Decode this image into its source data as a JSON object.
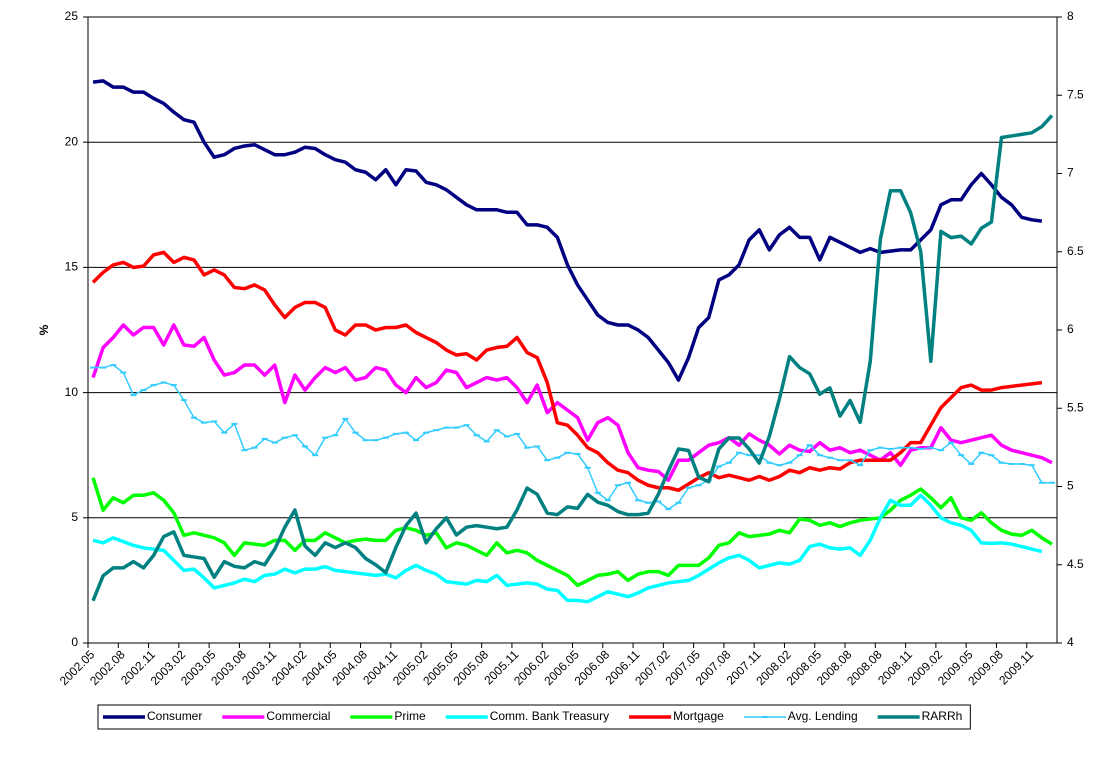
{
  "chart_data": {
    "type": "line",
    "y_label": "%",
    "categories": [
      "2002.05",
      null,
      null,
      "2002.08",
      null,
      null,
      "2002.11",
      null,
      null,
      "2003.02",
      null,
      null,
      "2003.05",
      null,
      null,
      "2003.08",
      null,
      null,
      "2003.11",
      null,
      null,
      "2004.02",
      null,
      null,
      "2004.05",
      null,
      null,
      "2004.08",
      null,
      null,
      "2004.11",
      null,
      null,
      "2005.02",
      null,
      null,
      "2005.05",
      null,
      null,
      "2005.08",
      null,
      null,
      "2005.11",
      null,
      null,
      "2006.02",
      null,
      null,
      "2006.05",
      null,
      null,
      "2006.08",
      null,
      null,
      "2006.11",
      null,
      null,
      "2007.02",
      null,
      null,
      "2007.05",
      null,
      null,
      "2007.08",
      null,
      null,
      "2007.11",
      null,
      null,
      "2008.02",
      null,
      null,
      "2008.05",
      null,
      null,
      "2008.08",
      null,
      null,
      "2008.08",
      null,
      null,
      "2008.11",
      null,
      null,
      "2009.02",
      null,
      null,
      "2009.05",
      null,
      null,
      "2009.08",
      null,
      null,
      "2009.11",
      null,
      null
    ],
    "ylim": [
      0,
      25
    ],
    "yticks": [
      0,
      5,
      10,
      15,
      20,
      25
    ],
    "y2lim": [
      4,
      8
    ],
    "y2ticks": [
      4,
      4.5,
      5,
      5.5,
      6,
      6.5,
      7,
      7.5,
      8
    ],
    "grid": true,
    "legend": "bottom",
    "series": [
      {
        "name": "Consumer",
        "color": "#000080",
        "values": [
          22.4,
          22.45,
          22.2,
          22.2,
          22.0,
          22.0,
          21.75,
          21.55,
          21.2,
          20.9,
          20.8,
          20.0,
          19.4,
          19.5,
          19.75,
          19.85,
          19.9,
          19.7,
          19.5,
          19.5,
          19.6,
          19.8,
          19.75,
          19.5,
          19.3,
          19.2,
          18.9,
          18.8,
          18.5,
          18.9,
          18.3,
          18.9,
          18.85,
          18.4,
          18.3,
          18.1,
          17.8,
          17.5,
          17.3,
          17.3,
          17.3,
          17.2,
          17.2,
          16.7,
          16.7,
          16.6,
          16.2,
          15.1,
          14.3,
          13.7,
          13.1,
          12.8,
          12.7,
          12.7,
          12.5,
          12.2,
          11.7,
          11.2,
          10.5,
          11.4,
          12.6,
          13.0,
          14.5,
          14.7,
          15.1,
          16.1,
          16.5,
          15.7,
          16.3,
          16.6,
          16.2,
          16.2,
          15.3,
          16.2,
          16.0,
          15.8,
          15.6,
          15.75,
          15.6,
          15.65,
          15.7,
          15.7,
          16.1,
          16.5,
          17.5,
          17.7,
          17.7,
          18.3,
          18.75,
          18.3,
          17.8,
          17.5,
          17.0,
          16.9,
          16.85,
          null
        ]
      },
      {
        "name": "Commercial",
        "color": "#ff00ff",
        "values": [
          10.6,
          11.8,
          12.2,
          12.7,
          12.3,
          12.6,
          12.6,
          11.9,
          12.7,
          11.9,
          11.85,
          12.2,
          11.3,
          10.7,
          10.8,
          11.1,
          11.1,
          10.7,
          11.1,
          9.6,
          10.7,
          10.1,
          10.6,
          11.0,
          10.8,
          11.0,
          10.5,
          10.6,
          11.0,
          10.9,
          10.3,
          10.0,
          10.6,
          10.2,
          10.4,
          10.9,
          10.8,
          10.2,
          10.4,
          10.6,
          10.5,
          10.6,
          10.2,
          9.6,
          10.3,
          9.2,
          9.6,
          9.3,
          9.0,
          8.1,
          8.8,
          9.0,
          8.7,
          7.6,
          7.0,
          6.9,
          6.85,
          6.5,
          7.3,
          7.3,
          7.6,
          7.9,
          8.0,
          8.2,
          7.9,
          8.35,
          8.1,
          7.9,
          7.55,
          7.9,
          7.7,
          7.65,
          8.0,
          7.7,
          7.8,
          7.6,
          7.7,
          7.5,
          7.3,
          7.6,
          7.1,
          7.7,
          7.8,
          7.8,
          8.6,
          8.1,
          8.0,
          8.1,
          8.2,
          8.3,
          7.9,
          7.7,
          7.6,
          7.5,
          7.4,
          7.2
        ]
      },
      {
        "name": "Prime",
        "color": "#00ff00",
        "values": [
          6.6,
          5.3,
          5.8,
          5.6,
          5.9,
          5.9,
          6.0,
          5.7,
          5.2,
          4.3,
          4.4,
          4.3,
          4.2,
          4.0,
          3.5,
          4.0,
          3.95,
          3.9,
          4.1,
          4.1,
          3.7,
          4.1,
          4.1,
          4.4,
          4.2,
          4.0,
          4.1,
          4.15,
          4.1,
          4.1,
          4.5,
          4.6,
          4.5,
          4.3,
          4.4,
          3.8,
          4.0,
          3.9,
          3.7,
          3.5,
          4.0,
          3.6,
          3.7,
          3.6,
          3.3,
          3.1,
          2.9,
          2.7,
          2.3,
          2.5,
          2.7,
          2.75,
          2.85,
          2.5,
          2.75,
          2.85,
          2.85,
          2.7,
          3.1,
          3.1,
          3.1,
          3.4,
          3.9,
          4.0,
          4.4,
          4.25,
          4.3,
          4.35,
          4.5,
          4.4,
          4.95,
          4.9,
          4.7,
          4.8,
          4.65,
          4.8,
          4.9,
          4.95,
          5.0,
          5.3,
          5.7,
          5.9,
          6.15,
          5.8,
          5.4,
          5.8,
          5.0,
          4.9,
          5.2,
          4.8,
          4.5,
          4.35,
          4.3,
          4.5,
          4.2,
          3.95
        ]
      },
      {
        "name": "Comm. Bank Treasury",
        "color": "#00ffff",
        "values": [
          4.1,
          4.0,
          4.2,
          4.05,
          3.9,
          3.8,
          3.75,
          3.7,
          3.3,
          2.9,
          2.95,
          2.6,
          2.2,
          2.3,
          2.4,
          2.55,
          2.45,
          2.7,
          2.75,
          2.95,
          2.8,
          2.95,
          2.95,
          3.05,
          2.9,
          2.85,
          2.8,
          2.75,
          2.7,
          2.75,
          2.6,
          2.9,
          3.1,
          2.9,
          2.75,
          2.45,
          2.4,
          2.35,
          2.5,
          2.45,
          2.7,
          2.3,
          2.35,
          2.4,
          2.35,
          2.15,
          2.1,
          1.7,
          1.7,
          1.65,
          1.85,
          2.05,
          1.95,
          1.85,
          2.0,
          2.2,
          2.3,
          2.4,
          2.45,
          2.5,
          2.7,
          2.95,
          3.2,
          3.4,
          3.5,
          3.3,
          3.0,
          3.1,
          3.2,
          3.15,
          3.3,
          3.85,
          3.95,
          3.8,
          3.75,
          3.8,
          3.5,
          4.1,
          5.0,
          5.7,
          5.5,
          5.5,
          5.9,
          5.5,
          5.0,
          4.8,
          4.7,
          4.5,
          4.0,
          3.98,
          4.0,
          3.95,
          3.85,
          3.75,
          3.65,
          null
        ]
      },
      {
        "name": "Mortgage",
        "color": "#ff0000",
        "values": [
          14.4,
          14.8,
          15.1,
          15.2,
          15.0,
          15.05,
          15.5,
          15.6,
          15.2,
          15.4,
          15.3,
          14.7,
          14.9,
          14.7,
          14.2,
          14.15,
          14.3,
          14.1,
          13.5,
          13.0,
          13.4,
          13.6,
          13.6,
          13.4,
          12.5,
          12.3,
          12.7,
          12.7,
          12.5,
          12.6,
          12.6,
          12.7,
          12.4,
          12.2,
          12.0,
          11.7,
          11.5,
          11.55,
          11.3,
          11.7,
          11.8,
          11.85,
          12.2,
          11.6,
          11.4,
          10.4,
          8.8,
          8.7,
          8.3,
          7.8,
          7.6,
          7.2,
          6.9,
          6.8,
          6.5,
          6.3,
          6.2,
          6.2,
          6.1,
          6.35,
          6.6,
          6.8,
          6.6,
          6.7,
          6.6,
          6.5,
          6.65,
          6.5,
          6.65,
          6.9,
          6.8,
          7.0,
          6.9,
          7.0,
          6.95,
          7.2,
          7.3,
          7.3,
          7.3,
          7.3,
          7.6,
          8.0,
          8.0,
          8.7,
          9.4,
          9.8,
          10.2,
          10.3,
          10.1,
          10.1,
          10.2,
          10.25,
          10.3,
          10.35,
          10.4,
          null
        ]
      },
      {
        "name": "Avg. Lending",
        "color": "#33ccff",
        "markers": true,
        "values": [
          11.0,
          11.0,
          11.1,
          10.8,
          9.9,
          10.1,
          10.3,
          10.4,
          10.3,
          9.7,
          9.0,
          8.8,
          8.85,
          8.4,
          8.75,
          7.7,
          7.8,
          8.15,
          8.0,
          8.2,
          8.3,
          7.85,
          7.5,
          8.2,
          8.3,
          8.95,
          8.4,
          8.1,
          8.1,
          8.2,
          8.35,
          8.4,
          8.1,
          8.4,
          8.5,
          8.6,
          8.6,
          8.7,
          8.3,
          8.05,
          8.5,
          8.25,
          8.35,
          7.8,
          7.85,
          7.3,
          7.4,
          7.6,
          7.55,
          7.0,
          6.0,
          5.7,
          6.3,
          6.4,
          5.7,
          5.6,
          5.65,
          5.35,
          5.6,
          6.2,
          6.3,
          6.5,
          7.05,
          7.2,
          7.6,
          7.5,
          7.5,
          7.2,
          7.1,
          7.2,
          7.5,
          7.9,
          7.5,
          7.4,
          7.3,
          7.3,
          7.1,
          7.7,
          7.8,
          7.75,
          7.8,
          7.8,
          7.75,
          7.8,
          7.7,
          8.0,
          7.5,
          7.15,
          7.6,
          7.5,
          7.2,
          7.15,
          7.15,
          7.1,
          6.4,
          6.4
        ]
      },
      {
        "name": "RARRh",
        "color": "#008080",
        "axis": "y2",
        "values": [
          4.27,
          4.43,
          4.48,
          4.48,
          4.52,
          4.48,
          4.56,
          4.68,
          4.71,
          4.56,
          4.55,
          4.54,
          4.42,
          4.52,
          4.49,
          4.48,
          4.52,
          4.5,
          4.6,
          4.74,
          4.85,
          4.62,
          4.56,
          4.64,
          4.61,
          4.64,
          4.61,
          4.54,
          4.5,
          4.45,
          4.61,
          4.75,
          4.83,
          4.64,
          4.73,
          4.8,
          4.69,
          4.74,
          4.75,
          4.74,
          4.73,
          4.74,
          4.85,
          4.99,
          4.95,
          4.83,
          4.82,
          4.87,
          4.86,
          4.95,
          4.9,
          4.88,
          4.84,
          4.82,
          4.82,
          4.83,
          4.95,
          5.1,
          5.24,
          5.23,
          5.06,
          5.03,
          5.24,
          5.31,
          5.31,
          5.24,
          5.15,
          5.32,
          5.56,
          5.83,
          5.76,
          5.72,
          5.59,
          5.63,
          5.45,
          5.55,
          5.41,
          5.8,
          6.58,
          6.89,
          6.89,
          6.75,
          6.5,
          5.8,
          6.63,
          6.59,
          6.6,
          6.55,
          6.65,
          6.69,
          7.23,
          7.24,
          7.25,
          7.26,
          7.3,
          7.37
        ]
      }
    ]
  }
}
